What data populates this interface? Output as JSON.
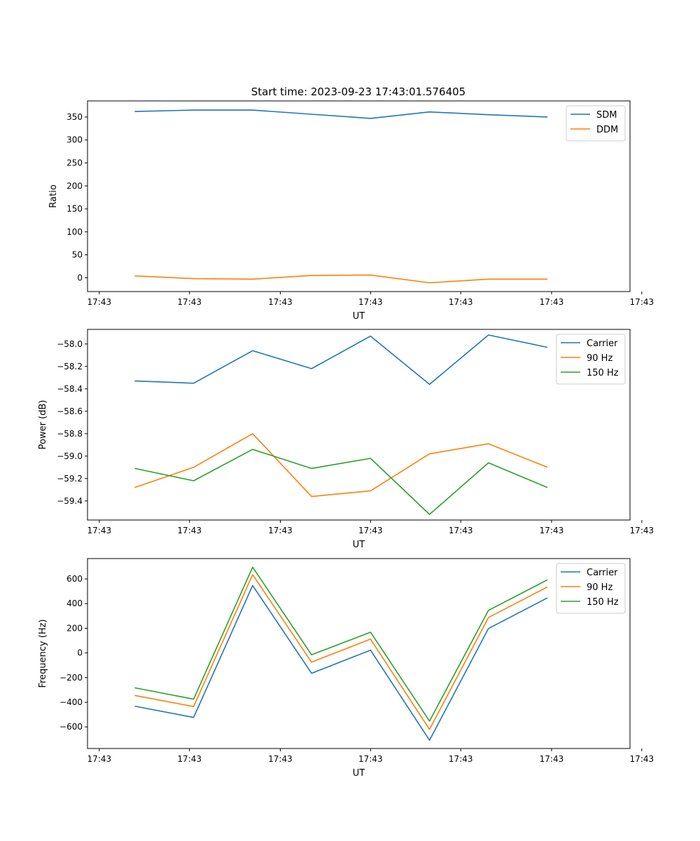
{
  "figure": {
    "title": "Start time: 2023-09-23 17:43:01.576405"
  },
  "chart_data": [
    {
      "type": "line",
      "xlabel": "UT",
      "ylabel": "Ratio",
      "x": [
        1,
        2,
        3,
        4,
        5,
        6,
        7,
        8
      ],
      "xlim": [
        0.2,
        9.4
      ],
      "xticks": [
        0.4,
        1.93,
        3.47,
        5,
        6.53,
        8.07,
        9.6
      ],
      "xticklabels": [
        "17:43",
        "17:43",
        "17:43",
        "17:43",
        "17:43",
        "17:43",
        "17:43"
      ],
      "ylim": [
        -30,
        385
      ],
      "yticks": [
        0,
        50,
        100,
        150,
        200,
        250,
        300,
        350
      ],
      "yticklabels": [
        "0",
        "50",
        "100",
        "150",
        "200",
        "250",
        "300",
        "350"
      ],
      "legend_position": "top-right",
      "series": [
        {
          "name": "SDM",
          "color": "#1f77b4",
          "values": [
            362,
            365,
            365,
            356,
            347,
            361,
            355,
            350
          ]
        },
        {
          "name": "DDM",
          "color": "#ff7f0e",
          "values": [
            4,
            -2,
            -3,
            5,
            6,
            -11,
            -3,
            -3
          ]
        }
      ]
    },
    {
      "type": "line",
      "xlabel": "UT",
      "ylabel": "Power (dB)",
      "x": [
        1,
        2,
        3,
        4,
        5,
        6,
        7,
        8
      ],
      "xlim": [
        0.2,
        9.4
      ],
      "xticks": [
        0.4,
        1.93,
        3.47,
        5,
        6.53,
        8.07,
        9.6
      ],
      "xticklabels": [
        "17:43",
        "17:43",
        "17:43",
        "17:43",
        "17:43",
        "17:43",
        "17:43"
      ],
      "ylim": [
        -59.57,
        -57.87
      ],
      "yticks": [
        -59.4,
        -59.2,
        -59.0,
        -58.8,
        -58.6,
        -58.4,
        -58.2,
        -58.0
      ],
      "yticklabels": [
        "−59.4",
        "−59.2",
        "−59.0",
        "−58.8",
        "−58.6",
        "−58.4",
        "−58.2",
        "−58.0"
      ],
      "legend_position": "top-right",
      "series": [
        {
          "name": "Carrier",
          "color": "#1f77b4",
          "values": [
            -58.33,
            -58.35,
            -58.06,
            -58.22,
            -57.93,
            -58.36,
            -57.92,
            -58.03
          ]
        },
        {
          "name": "90 Hz",
          "color": "#ff7f0e",
          "values": [
            -59.28,
            -59.1,
            -58.8,
            -59.36,
            -59.31,
            -58.98,
            -58.89,
            -59.1
          ]
        },
        {
          "name": "150 Hz",
          "color": "#2ca02c",
          "values": [
            -59.11,
            -59.22,
            -58.94,
            -59.11,
            -59.02,
            -59.52,
            -59.06,
            -59.28
          ]
        }
      ]
    },
    {
      "type": "line",
      "xlabel": "UT",
      "ylabel": "Frequency (Hz)",
      "x": [
        1,
        2,
        3,
        4,
        5,
        6,
        7,
        8
      ],
      "xlim": [
        0.2,
        9.4
      ],
      "xticks": [
        0.4,
        1.93,
        3.47,
        5,
        6.53,
        8.07,
        9.6
      ],
      "xticklabels": [
        "17:43",
        "17:43",
        "17:43",
        "17:43",
        "17:43",
        "17:43",
        "17:43"
      ],
      "ylim": [
        -775,
        765
      ],
      "yticks": [
        -600,
        -400,
        -200,
        0,
        200,
        400,
        600
      ],
      "yticklabels": [
        "−600",
        "−400",
        "−200",
        "0",
        "200",
        "400",
        "600"
      ],
      "legend_position": "top-right",
      "series": [
        {
          "name": "Carrier",
          "color": "#1f77b4",
          "values": [
            -432,
            -523,
            547,
            -165,
            22,
            -708,
            198,
            446
          ]
        },
        {
          "name": "90 Hz",
          "color": "#ff7f0e",
          "values": [
            -345,
            -435,
            635,
            -75,
            112,
            -620,
            287,
            535
          ]
        },
        {
          "name": "150 Hz",
          "color": "#2ca02c",
          "values": [
            -283,
            -375,
            695,
            -15,
            168,
            -553,
            345,
            593
          ]
        }
      ]
    }
  ]
}
